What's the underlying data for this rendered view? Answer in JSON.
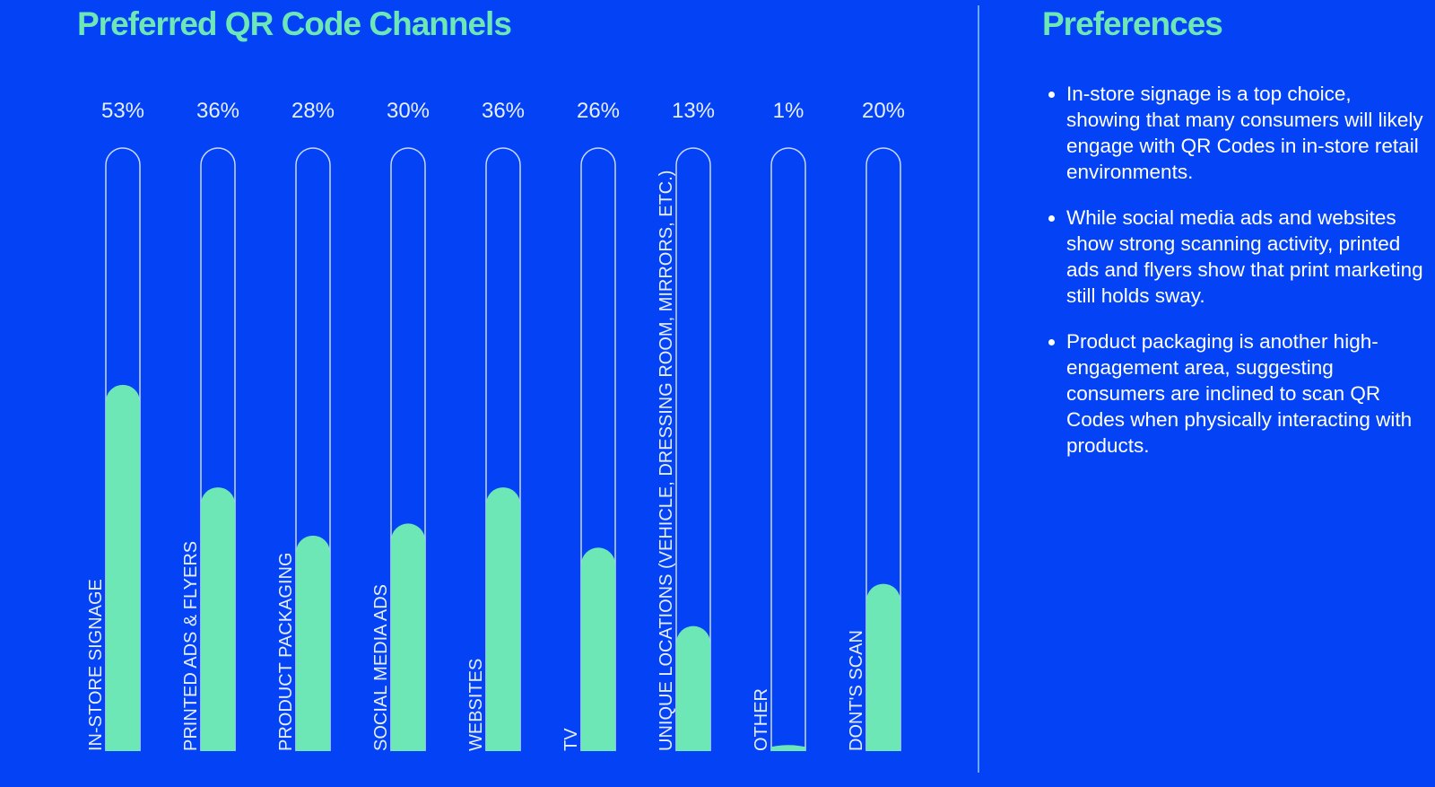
{
  "chart_data": {
    "type": "bar",
    "title": "Preferred QR Code Channels",
    "xlabel": "",
    "ylabel": "",
    "ylim": [
      0,
      100
    ],
    "unit": "%",
    "categories": [
      "IN-STORE SIGNAGE",
      "PRINTED ADS & FLYERS",
      "PRODUCT PACKAGING",
      "SOCIAL MEDIA ADS",
      "WEBSITES",
      "TV",
      "UNIQUE LOCATIONS (VEHICLE, DRESSING ROOM, MIRRORS, ETC.)",
      "OTHER",
      "DONT'S SCAN"
    ],
    "values": [
      53,
      36,
      28,
      30,
      36,
      26,
      13,
      1,
      20
    ],
    "value_labels": [
      "53%",
      "36%",
      "28%",
      "30%",
      "36%",
      "26%",
      "13%",
      "1%",
      "20%"
    ],
    "grid": false,
    "legend": "none",
    "colors": {
      "background": "#0343F5",
      "fill": "#6EE7B7",
      "track_outline": "#C9D7FF",
      "text": "#E6EEFF"
    }
  },
  "preferences": {
    "title": "Preferences",
    "items": [
      "In-store signage is a top choice, showing that many consumers will likely engage with QR Codes in in-store retail environments.",
      "While social media ads and websites show strong scanning activity, printed ads and flyers show that print marketing still holds sway.",
      "Product packaging is another high-engagement area, suggesting consumers are inclined to scan QR Codes when physically interacting with products."
    ]
  }
}
